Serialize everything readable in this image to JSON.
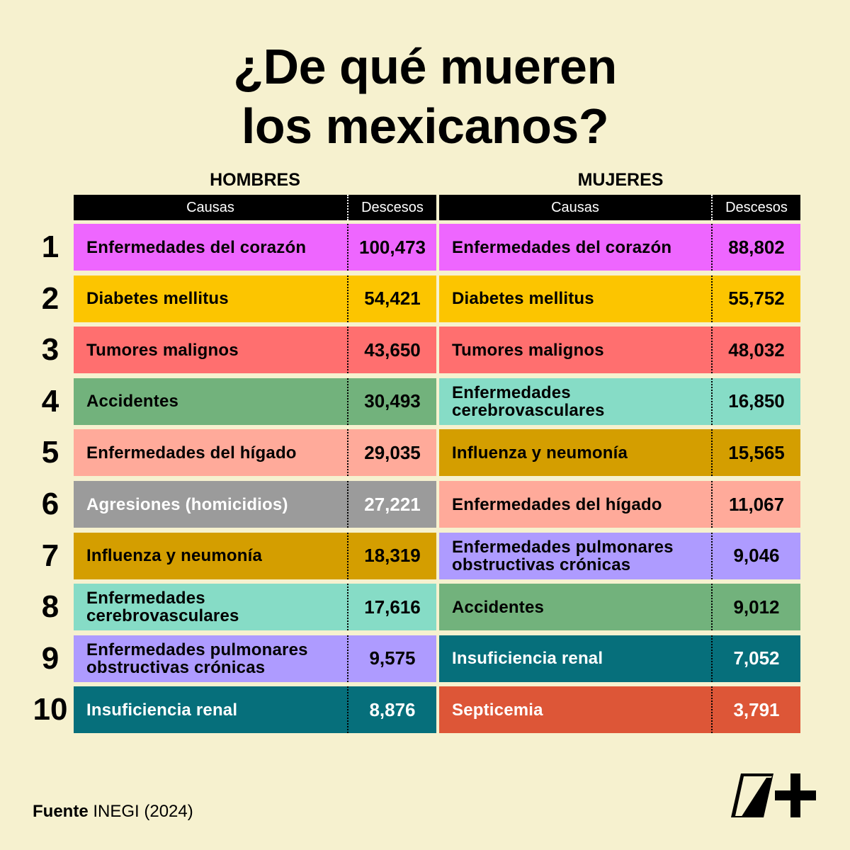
{
  "title_line1": "¿De qué mueren",
  "title_line2": "los mexicanos?",
  "chart_data": {
    "type": "table",
    "groups": [
      {
        "name": "HOMBRES",
        "col_cause": "Causas",
        "col_value": "Descesos",
        "rows": [
          {
            "cause": "Enfermedades del corazón",
            "value": "100,473",
            "color": "#ee66ff",
            "text": "dark"
          },
          {
            "cause": "Diabetes mellitus",
            "value": "54,421",
            "color": "#fcc500",
            "text": "dark"
          },
          {
            "cause": "Tumores malignos",
            "value": "43,650",
            "color": "#ff6f6f",
            "text": "dark"
          },
          {
            "cause": "Accidentes",
            "value": "30,493",
            "color": "#72b27c",
            "text": "dark"
          },
          {
            "cause": "Enfermedades del hígado",
            "value": "29,035",
            "color": "#ffaa9a",
            "text": "dark"
          },
          {
            "cause": "Agresiones (homicidios)",
            "value": "27,221",
            "color": "#9b9b9b",
            "text": "light"
          },
          {
            "cause": "Influenza y neumonía",
            "value": "18,319",
            "color": "#d49e00",
            "text": "dark"
          },
          {
            "cause": "Enfermedades cerebrovasculares",
            "value": "17,616",
            "color": "#86dcc6",
            "text": "dark"
          },
          {
            "cause": "Enfermedades pulmonares obstructivas crónicas",
            "value": "9,575",
            "color": "#ae9bff",
            "text": "dark"
          },
          {
            "cause": "Insuficiencia renal",
            "value": "8,876",
            "color": "#066f7b",
            "text": "light"
          }
        ]
      },
      {
        "name": "MUJERES",
        "col_cause": "Causas",
        "col_value": "Descesos",
        "rows": [
          {
            "cause": "Enfermedades del corazón",
            "value": "88,802",
            "color": "#ee66ff",
            "text": "dark"
          },
          {
            "cause": "Diabetes mellitus",
            "value": "55,752",
            "color": "#fcc500",
            "text": "dark"
          },
          {
            "cause": "Tumores malignos",
            "value": "48,032",
            "color": "#ff6f6f",
            "text": "dark"
          },
          {
            "cause": "Enfermedades cerebrovasculares",
            "value": "16,850",
            "color": "#86dcc6",
            "text": "dark"
          },
          {
            "cause": "Influenza y neumonía",
            "value": "15,565",
            "color": "#d49e00",
            "text": "dark"
          },
          {
            "cause": "Enfermedades del hígado",
            "value": "11,067",
            "color": "#ffaa9a",
            "text": "dark"
          },
          {
            "cause": "Enfermedades pulmonares obstructivas crónicas",
            "value": "9,046",
            "color": "#ae9bff",
            "text": "dark"
          },
          {
            "cause": "Accidentes",
            "value": "9,012",
            "color": "#72b27c",
            "text": "dark"
          },
          {
            "cause": "Insuficiencia renal",
            "value": "7,052",
            "color": "#066f7b",
            "text": "light"
          },
          {
            "cause": "Septicemia",
            "value": "3,791",
            "color": "#dd5637",
            "text": "light"
          }
        ]
      }
    ],
    "ranks": [
      "1",
      "2",
      "3",
      "4",
      "5",
      "6",
      "7",
      "8",
      "9",
      "10"
    ]
  },
  "source_label": "Fuente",
  "source_value": "INEGI (2024)",
  "logo_text": "N+"
}
